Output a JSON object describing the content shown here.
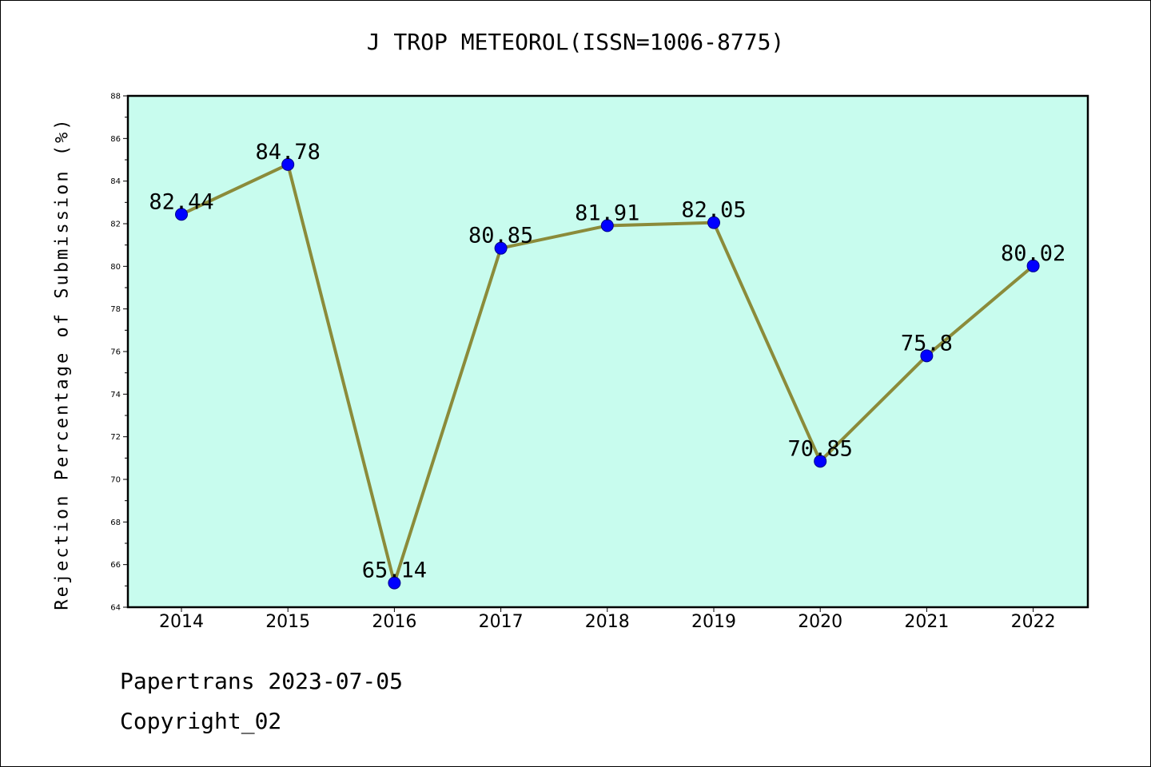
{
  "chart_data": {
    "type": "line",
    "title": "J TROP METEOROL(ISSN=1006-8775)",
    "ylabel": "Rejection Percentage of Submission (%)",
    "xlabel": "",
    "ylim": [
      64,
      88
    ],
    "yticks": [
      64,
      66,
      68,
      70,
      72,
      74,
      76,
      78,
      80,
      82,
      84,
      86,
      88
    ],
    "categories": [
      "2014",
      "2015",
      "2016",
      "2017",
      "2018",
      "2019",
      "2020",
      "2021",
      "2022"
    ],
    "series": [
      {
        "values": [
          82.44,
          84.78,
          65.14,
          80.85,
          81.91,
          82.05,
          70.85,
          75.8,
          80.02
        ],
        "labels": [
          "82.44",
          "84.78",
          "65.14",
          "80.85",
          "81.91",
          "82.05",
          "70.85",
          "75.8",
          "80.02"
        ]
      }
    ],
    "grid": false,
    "colors": {
      "plot_background": "#c8fcee",
      "line": "#8b8b3a",
      "marker": "#0000ff"
    }
  },
  "footer": {
    "line1": "Papertrans 2023-07-05",
    "line2": "Copyright_02"
  }
}
